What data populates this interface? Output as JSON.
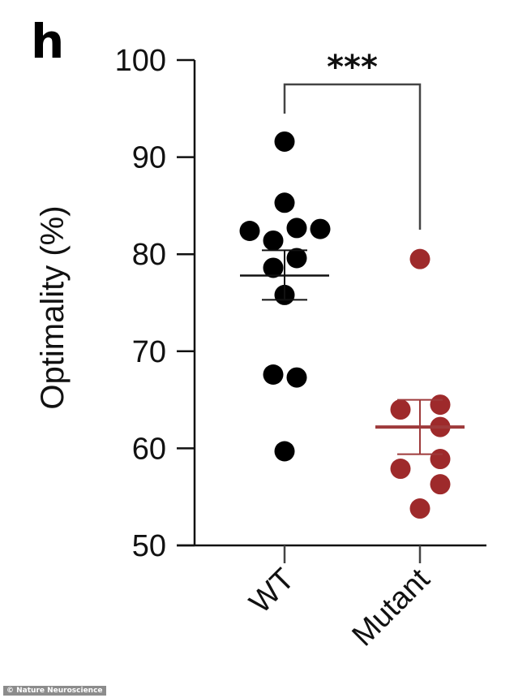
{
  "panel_label": "h",
  "credit": "© Nature Neuroscience",
  "significance": "***",
  "colors": {
    "wt": "#000000",
    "mutant": "#9e2a2b",
    "axis": "#111111"
  },
  "chart_data": {
    "type": "scatter",
    "title": "",
    "xlabel": "",
    "ylabel": "Optimality (%)",
    "ylim": [
      50,
      100
    ],
    "yticks": [
      50,
      60,
      70,
      80,
      90,
      100
    ],
    "categories": [
      "WT",
      "Mutant"
    ],
    "grid": false,
    "legend": null,
    "series": [
      {
        "name": "WT",
        "color": "#000000",
        "values": [
          91.6,
          85.3,
          82.7,
          82.6,
          82.4,
          81.4,
          79.6,
          78.6,
          75.8,
          67.6,
          67.3,
          59.7
        ],
        "mean": 77.8,
        "sem": [
          75.3,
          80.4
        ]
      },
      {
        "name": "Mutant",
        "color": "#9e2a2b",
        "values": [
          79.5,
          64.5,
          64.0,
          62.2,
          58.9,
          57.9,
          56.3,
          53.8
        ],
        "mean": 62.2,
        "sem": [
          59.4,
          65.0
        ]
      }
    ],
    "annotations": [
      {
        "text": "***",
        "between": [
          "WT",
          "Mutant"
        ]
      }
    ]
  }
}
